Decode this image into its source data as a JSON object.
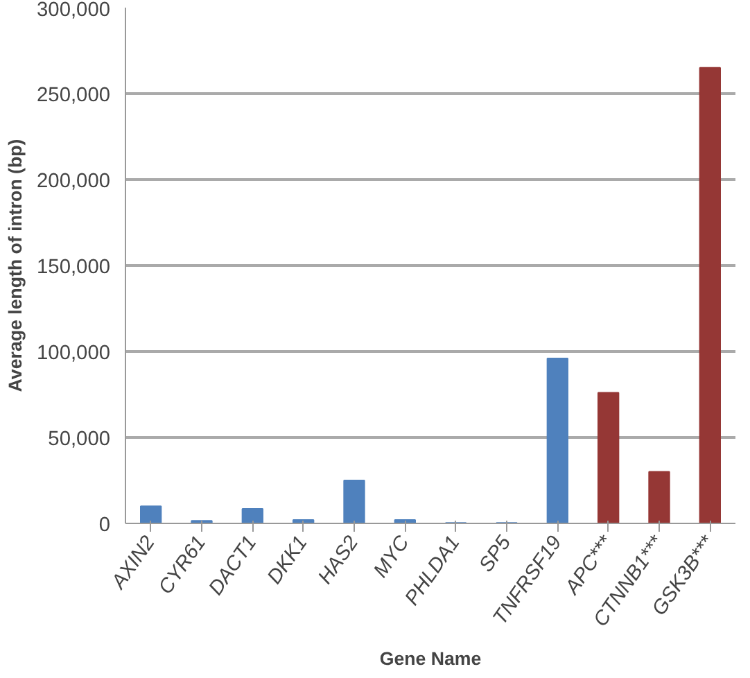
{
  "chart_data": {
    "type": "bar",
    "xlabel": "Gene Name",
    "ylabel": "Average length of intron (bp)",
    "categories": [
      "AXIN2",
      "CYR61",
      "DACT1",
      "DKK1",
      "HAS2",
      "MYC",
      "PHLDA1",
      "SP5",
      "TNFRSF19",
      "APC***",
      "CTNNB1***",
      "GSK3B***"
    ],
    "values": [
      10000,
      1500,
      8500,
      2000,
      25000,
      2000,
      300,
      300,
      96000,
      76000,
      30000,
      265000
    ],
    "colors": [
      "#4f81bd",
      "#4f81bd",
      "#4f81bd",
      "#4f81bd",
      "#4f81bd",
      "#4f81bd",
      "#4f81bd",
      "#4f81bd",
      "#4f81bd",
      "#953735",
      "#953735",
      "#953735"
    ],
    "ylim": [
      0,
      300000
    ],
    "yticks": [
      {
        "value": 0,
        "label": "0"
      },
      {
        "value": 50000,
        "label": "50,000"
      },
      {
        "value": 100000,
        "label": "100,000"
      },
      {
        "value": 150000,
        "label": "150,000"
      },
      {
        "value": 200000,
        "label": "200,000"
      },
      {
        "value": 250000,
        "label": "250,000"
      },
      {
        "value": 300000,
        "label": "300,000"
      }
    ],
    "grid": "y"
  }
}
